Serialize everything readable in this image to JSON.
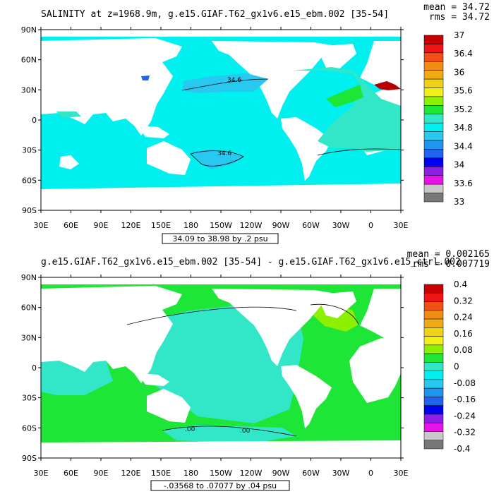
{
  "colors": {
    "ocean_cyan": "#00f0f0",
    "land": "#ffffff",
    "green": "#1ee636",
    "aqua": "#32e6c8",
    "sky": "#28c8f0",
    "lime": "#8cf000",
    "dark_red": "#b40000",
    "blue": "#1e64f0"
  },
  "panels": [
    {
      "title": "SALINITY at z=1968.9m, g.e15.GIAF.T62_gx1v6.e15_ebm.002 [35-54]",
      "stat_mean": "mean = 34.72",
      "stat_rms": "rms = 34.72",
      "range_label": "34.09 to 38.98 by .2 psu",
      "lat_labels": [
        "90N",
        "60N",
        "30N",
        "0",
        "30S",
        "60S",
        "90S"
      ],
      "lon_labels": [
        "30E",
        "60E",
        "90E",
        "120E",
        "150E",
        "180",
        "150W",
        "120W",
        "90W",
        "60W",
        "30W",
        "0",
        "30E"
      ],
      "contour_labels": [
        "34.6",
        "34.6"
      ],
      "colorbar": {
        "colors": [
          "#c80000",
          "#f01414",
          "#f05014",
          "#f08c14",
          "#f0aa14",
          "#f0d214",
          "#f0f014",
          "#8cf000",
          "#1ee636",
          "#32e6c8",
          "#00f0f0",
          "#28c8f0",
          "#1e96f0",
          "#1e64f0",
          "#0000f0",
          "#8c1ee6",
          "#e614e6",
          "#c8c8c8",
          "#787878"
        ],
        "labels": [
          "37",
          "36.4",
          "36",
          "35.6",
          "35.2",
          "34.8",
          "34.4",
          "34",
          "33.6",
          "33"
        ]
      }
    },
    {
      "title": "g.e15.GIAF.T62_gx1v6.e15_ebm.002 [35-54] - g.e15.GIAF.T62_gx1v6.e15_ctrl.002",
      "stat_mean": "mean = 0.002165",
      "stat_rms": "rms = 0.007719",
      "range_label": "-.03568 to .07077 by .04 psu",
      "lat_labels": [
        "90N",
        "60N",
        "30N",
        "0",
        "30S",
        "60S",
        "90S"
      ],
      "lon_labels": [
        "30E",
        "60E",
        "90E",
        "120E",
        "150E",
        "180",
        "150W",
        "120W",
        "90W",
        "60W",
        "30W",
        "0",
        "30E"
      ],
      "contour_labels": [
        ".00",
        ".00"
      ],
      "colorbar": {
        "colors": [
          "#c80000",
          "#f01414",
          "#f05014",
          "#f08c14",
          "#f0aa14",
          "#f0d214",
          "#f0f014",
          "#8cf000",
          "#1ee636",
          "#32e6c8",
          "#00f0f0",
          "#28c8f0",
          "#1e96f0",
          "#1e64f0",
          "#0000f0",
          "#8c1ee6",
          "#e614e6",
          "#c8c8c8",
          "#787878"
        ],
        "labels": [
          "0.4",
          "0.32",
          "0.24",
          "0.16",
          "0.08",
          "0",
          "-0.08",
          "-0.16",
          "-0.24",
          "-0.32",
          "-0.4"
        ]
      }
    }
  ]
}
